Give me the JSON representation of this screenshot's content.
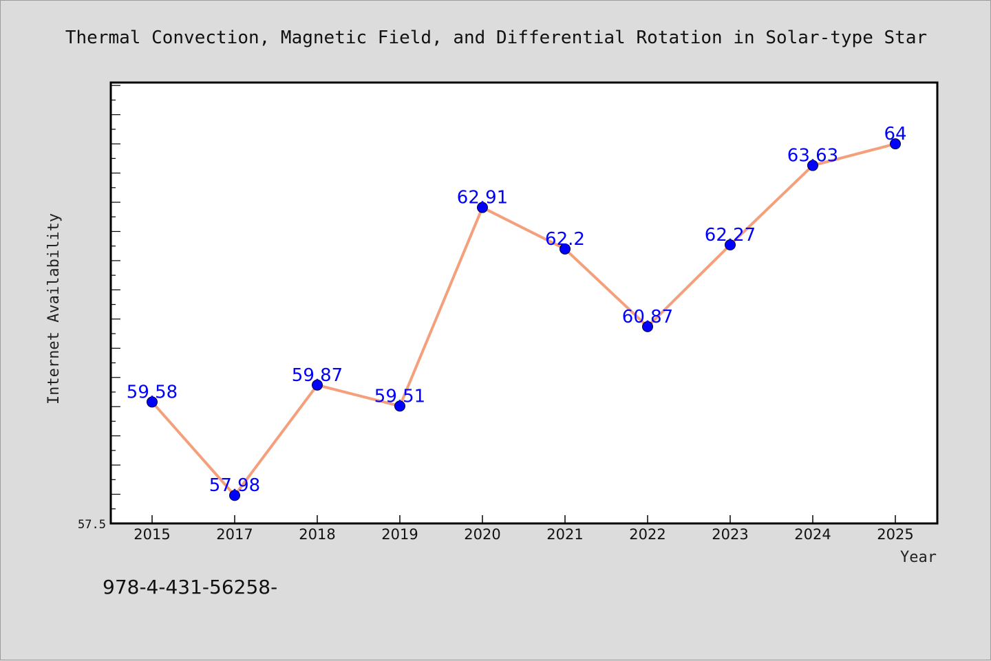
{
  "chart_data": {
    "type": "line",
    "title": "Thermal Convection, Magnetic Field, and Differential Rotation in Solar-type Star",
    "xlabel": "Year",
    "ylabel": "Internet Availability",
    "categories": [
      "2015",
      "2017",
      "2018",
      "2019",
      "2020",
      "2021",
      "2022",
      "2023",
      "2024",
      "2025"
    ],
    "series": [
      {
        "values": [
          59.58,
          57.98,
          59.87,
          59.51,
          62.91,
          62.2,
          60.87,
          62.27,
          63.63,
          64
        ],
        "labels": [
          "59.58",
          "57.98",
          "59.87",
          "59.51",
          "62.91",
          "62.2",
          "60.87",
          "62.27",
          "63.63",
          "64"
        ]
      }
    ],
    "ylim": [
      57.5,
      65.05
    ],
    "yticks_labeled": [
      "57.5"
    ],
    "grid": false,
    "line_color": "#f4a07c",
    "marker_color": "#0000ff",
    "label_color": "#0000ff"
  },
  "footnote": "978-4-431-56258-"
}
